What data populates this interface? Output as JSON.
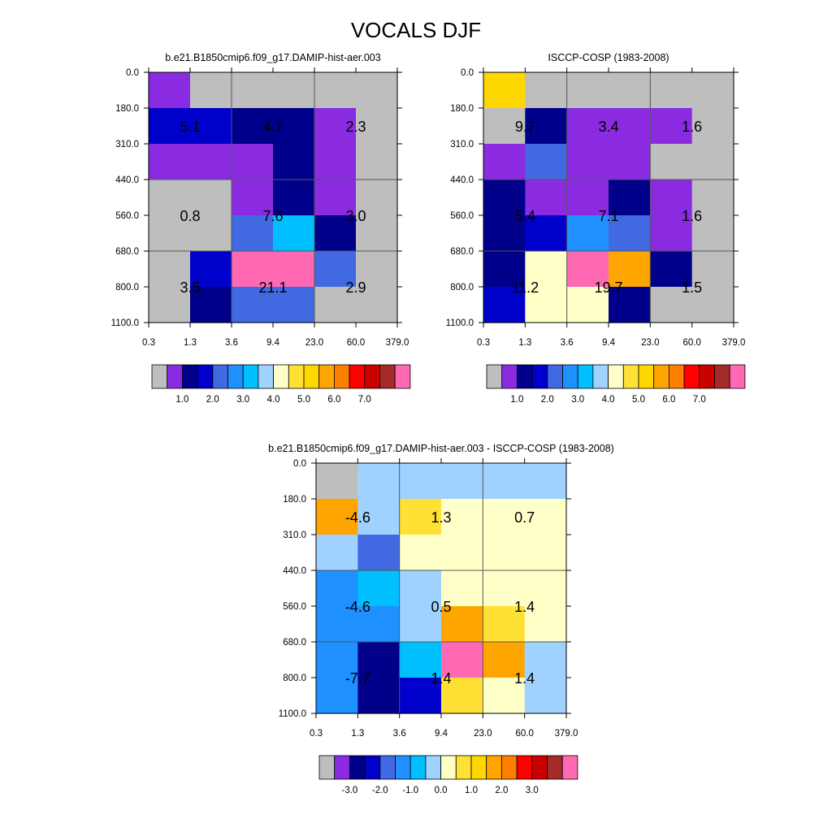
{
  "title": "VOCALS DJF",
  "x_tick_labels": [
    "0.3",
    "1.3",
    "3.6",
    "9.4",
    "23.0",
    "60.0",
    "379.0"
  ],
  "y_tick_labels": [
    "0.0",
    "180.0",
    "310.0",
    "440.0",
    "560.0",
    "680.0",
    "800.0",
    "1100.0"
  ],
  "palette": [
    "#bebebe",
    "#8a2be2",
    "#00008b",
    "#0000cd",
    "#4169e1",
    "#1e90ff",
    "#00bfff",
    "#a0d2ff",
    "#ffffc8",
    "#ffe135",
    "#ffd700",
    "#ffa500",
    "#ff7f00",
    "#ff0000",
    "#cd0000",
    "#a52a2a",
    "#ff69b4"
  ],
  "chart_data": [
    {
      "type": "heatmap",
      "title": "b.e21.B1850cmip6.f09_g17.DAMIP-hist-aer.003",
      "cells": [
        [
          1,
          0,
          0,
          0,
          0,
          0
        ],
        [
          3,
          3,
          2,
          2,
          1,
          0
        ],
        [
          1,
          1,
          1,
          2,
          1,
          0
        ],
        [
          0,
          0,
          1,
          2,
          1,
          0
        ],
        [
          0,
          0,
          4,
          6,
          2,
          0
        ],
        [
          0,
          3,
          16,
          16,
          4,
          0
        ],
        [
          0,
          2,
          4,
          4,
          0,
          0
        ]
      ],
      "block_values": [
        [
          "5.1",
          "4.7",
          "2.3"
        ],
        [
          "0.8",
          "7.6",
          "3.0"
        ],
        [
          "3.5",
          "21.1",
          "2.9"
        ]
      ],
      "colorbar_labels": [
        "1.0",
        "2.0",
        "3.0",
        "4.0",
        "5.0",
        "6.0",
        "7.0"
      ]
    },
    {
      "type": "heatmap",
      "title": "ISCCP-COSP (1983-2008)",
      "cells": [
        [
          10,
          0,
          0,
          0,
          0,
          0
        ],
        [
          0,
          2,
          1,
          1,
          1,
          0
        ],
        [
          1,
          4,
          1,
          1,
          0,
          0
        ],
        [
          2,
          1,
          1,
          2,
          1,
          0
        ],
        [
          2,
          3,
          5,
          4,
          1,
          0
        ],
        [
          2,
          8,
          16,
          11,
          2,
          0
        ],
        [
          3,
          8,
          8,
          2,
          0,
          0
        ]
      ],
      "block_values": [
        [
          "9.7",
          "3.4",
          "1.6"
        ],
        [
          "5.4",
          "7.1",
          "1.6"
        ],
        [
          "11.2",
          "19.7",
          "1.5"
        ]
      ],
      "colorbar_labels": [
        "1.0",
        "2.0",
        "3.0",
        "4.0",
        "5.0",
        "6.0",
        "7.0"
      ]
    },
    {
      "type": "heatmap",
      "title": "b.e21.B1850cmip6.f09_g17.DAMIP-hist-aer.003 - ISCCP-COSP (1983-2008)",
      "cells": [
        [
          0,
          7,
          7,
          7,
          7,
          7
        ],
        [
          11,
          7,
          9,
          8,
          8,
          8
        ],
        [
          7,
          4,
          8,
          8,
          8,
          8
        ],
        [
          5,
          6,
          7,
          8,
          8,
          8
        ],
        [
          5,
          5,
          7,
          11,
          9,
          8
        ],
        [
          5,
          2,
          6,
          16,
          11,
          7
        ],
        [
          5,
          2,
          3,
          9,
          8,
          7
        ]
      ],
      "block_values": [
        [
          "-4.6",
          "1.3",
          "0.7"
        ],
        [
          "-4.6",
          "0.5",
          "1.4"
        ],
        [
          "-7.7",
          "1.4",
          "1.4"
        ]
      ],
      "colorbar_labels": [
        "-3.0",
        "-2.0",
        "-1.0",
        "0.0",
        "1.0",
        "2.0",
        "3.0"
      ]
    }
  ]
}
